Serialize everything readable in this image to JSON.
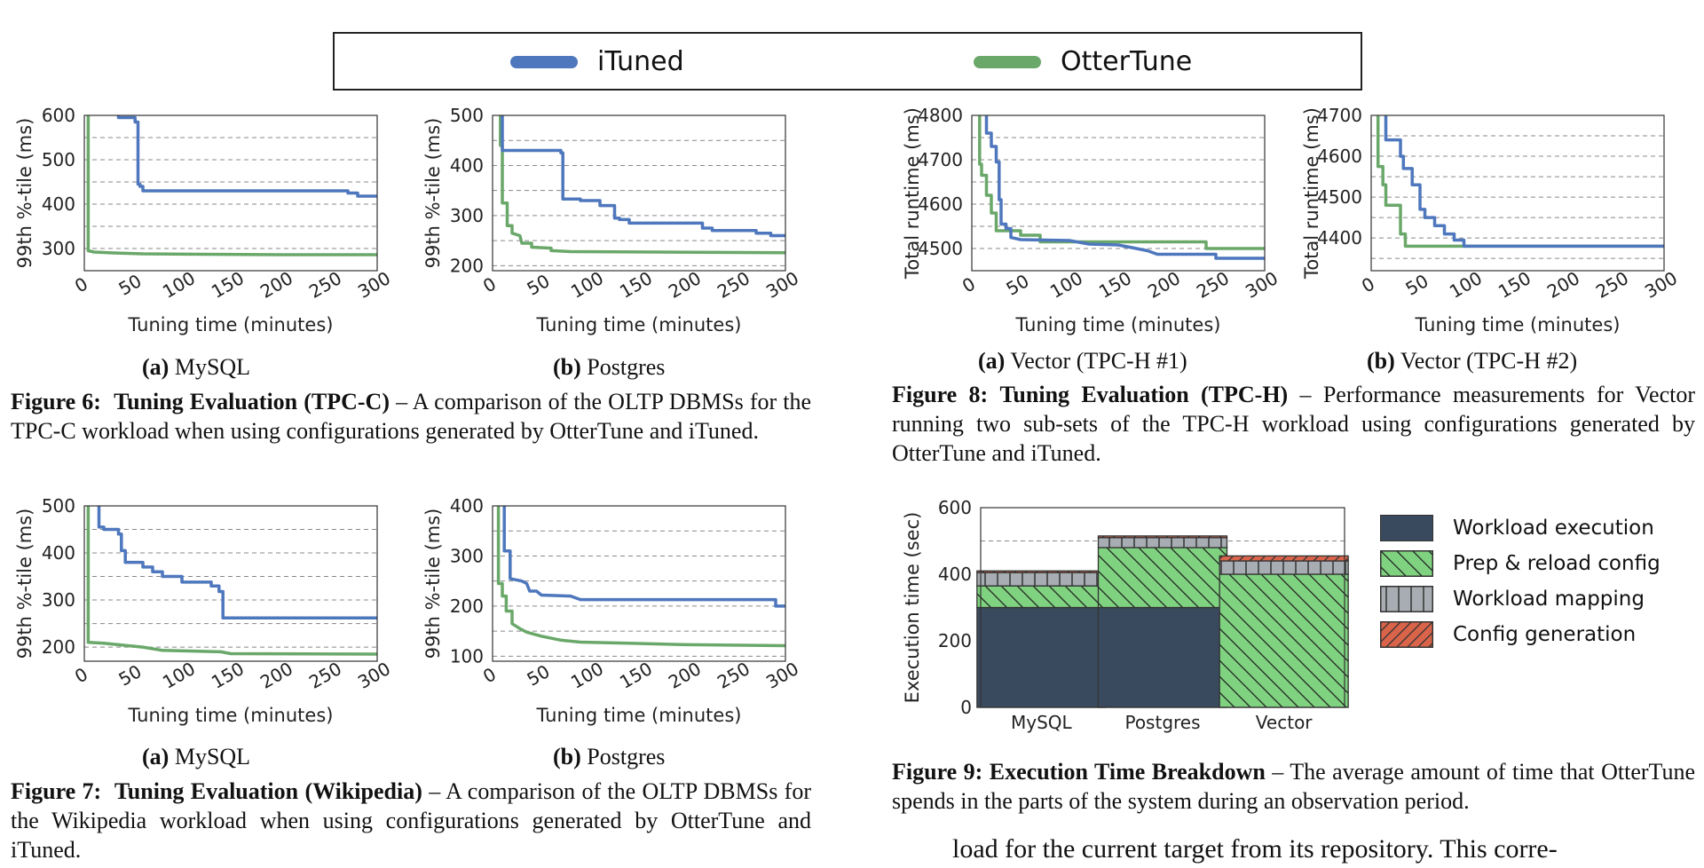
{
  "legend": {
    "itunes_label": "iTuned",
    "ottertune_label": "OtterTune",
    "colors": {
      "ituned": "#4e77bd",
      "ottertune": "#6aa86a"
    }
  },
  "charts": {
    "fig6a": {
      "ylabel": "99th %-tile (ms)",
      "xlabel": "Tuning time (minutes)",
      "xmin": 0,
      "xmax": 300,
      "ymin": 250,
      "ymax": 600,
      "xticks": [
        0,
        50,
        100,
        150,
        200,
        250,
        300
      ],
      "yticks": [
        300,
        400,
        500,
        600
      ],
      "series": {
        "ituned": [
          [
            35,
            600
          ],
          [
            35,
            595
          ],
          [
            52,
            595
          ],
          [
            52,
            585
          ],
          [
            55,
            585
          ],
          [
            55,
            445
          ],
          [
            57,
            445
          ],
          [
            57,
            440
          ],
          [
            60,
            440
          ],
          [
            60,
            430
          ],
          [
            270,
            430
          ],
          [
            270,
            425
          ],
          [
            280,
            425
          ],
          [
            280,
            418
          ],
          [
            300,
            418
          ]
        ],
        "ottertune": [
          [
            4,
            600
          ],
          [
            4,
            295
          ],
          [
            10,
            292
          ],
          [
            30,
            290
          ],
          [
            60,
            288
          ],
          [
            120,
            287
          ],
          [
            200,
            286
          ],
          [
            300,
            286
          ]
        ]
      }
    },
    "fig6b": {
      "ylabel": "99th %-tile (ms)",
      "xlabel": "Tuning time (minutes)",
      "xmin": 0,
      "xmax": 300,
      "ymin": 190,
      "ymax": 500,
      "xticks": [
        0,
        50,
        100,
        150,
        200,
        250,
        300
      ],
      "yticks": [
        200,
        300,
        400,
        500
      ],
      "series": {
        "ituned": [
          [
            10,
            500
          ],
          [
            10,
            430
          ],
          [
            70,
            430
          ],
          [
            70,
            425
          ],
          [
            72,
            425
          ],
          [
            72,
            333
          ],
          [
            90,
            333
          ],
          [
            90,
            330
          ],
          [
            110,
            330
          ],
          [
            110,
            320
          ],
          [
            125,
            320
          ],
          [
            125,
            295
          ],
          [
            130,
            295
          ],
          [
            130,
            292
          ],
          [
            140,
            292
          ],
          [
            140,
            285
          ],
          [
            215,
            285
          ],
          [
            215,
            275
          ],
          [
            225,
            275
          ],
          [
            225,
            270
          ],
          [
            270,
            270
          ],
          [
            270,
            265
          ],
          [
            285,
            265
          ],
          [
            285,
            260
          ],
          [
            300,
            260
          ]
        ],
        "ottertune": [
          [
            8,
            500
          ],
          [
            8,
            440
          ],
          [
            10,
            440
          ],
          [
            10,
            325
          ],
          [
            15,
            325
          ],
          [
            15,
            280
          ],
          [
            20,
            280
          ],
          [
            20,
            265
          ],
          [
            28,
            260
          ],
          [
            30,
            245
          ],
          [
            40,
            245
          ],
          [
            40,
            237
          ],
          [
            60,
            235
          ],
          [
            60,
            230
          ],
          [
            80,
            228
          ],
          [
            300,
            226
          ]
        ]
      }
    },
    "fig7a": {
      "ylabel": "99th %-tile (ms)",
      "xlabel": "Tuning time (minutes)",
      "xmin": 0,
      "xmax": 300,
      "ymin": 170,
      "ymax": 500,
      "xticks": [
        0,
        50,
        100,
        150,
        200,
        250,
        300
      ],
      "yticks": [
        200,
        300,
        400,
        500
      ],
      "series": {
        "ituned": [
          [
            15,
            500
          ],
          [
            15,
            455
          ],
          [
            20,
            455
          ],
          [
            20,
            450
          ],
          [
            35,
            450
          ],
          [
            35,
            440
          ],
          [
            38,
            440
          ],
          [
            38,
            405
          ],
          [
            42,
            405
          ],
          [
            42,
            380
          ],
          [
            60,
            380
          ],
          [
            60,
            370
          ],
          [
            70,
            370
          ],
          [
            70,
            360
          ],
          [
            80,
            360
          ],
          [
            80,
            350
          ],
          [
            100,
            350
          ],
          [
            100,
            338
          ],
          [
            130,
            338
          ],
          [
            130,
            330
          ],
          [
            138,
            330
          ],
          [
            138,
            318
          ],
          [
            142,
            318
          ],
          [
            142,
            262
          ],
          [
            300,
            262
          ]
        ],
        "ottertune": [
          [
            4,
            500
          ],
          [
            4,
            210
          ],
          [
            20,
            208
          ],
          [
            40,
            204
          ],
          [
            60,
            200
          ],
          [
            80,
            193
          ],
          [
            140,
            190
          ],
          [
            150,
            186
          ],
          [
            300,
            185
          ]
        ]
      }
    },
    "fig7b": {
      "ylabel": "99th %-tile (ms)",
      "xlabel": "Tuning time (minutes)",
      "xmin": 0,
      "xmax": 300,
      "ymin": 90,
      "ymax": 400,
      "xticks": [
        0,
        50,
        100,
        150,
        200,
        250,
        300
      ],
      "yticks": [
        100,
        200,
        300,
        400
      ],
      "series": {
        "ituned": [
          [
            12,
            400
          ],
          [
            12,
            310
          ],
          [
            18,
            310
          ],
          [
            18,
            255
          ],
          [
            30,
            250
          ],
          [
            35,
            245
          ],
          [
            38,
            230
          ],
          [
            45,
            230
          ],
          [
            50,
            222
          ],
          [
            80,
            220
          ],
          [
            90,
            213
          ],
          [
            290,
            213
          ],
          [
            290,
            200
          ],
          [
            300,
            200
          ]
        ],
        "ottertune": [
          [
            6,
            400
          ],
          [
            6,
            245
          ],
          [
            10,
            245
          ],
          [
            10,
            220
          ],
          [
            14,
            220
          ],
          [
            14,
            190
          ],
          [
            20,
            190
          ],
          [
            20,
            165
          ],
          [
            28,
            155
          ],
          [
            35,
            148
          ],
          [
            50,
            140
          ],
          [
            70,
            132
          ],
          [
            90,
            128
          ],
          [
            140,
            126
          ],
          [
            200,
            123
          ],
          [
            300,
            121
          ]
        ]
      }
    },
    "fig8a": {
      "ylabel": "Total runtime (ms)",
      "xlabel": "Tuning time (minutes)",
      "xmin": 0,
      "xmax": 300,
      "ymin": 4450,
      "ymax": 4800,
      "xticks": [
        0,
        50,
        100,
        150,
        200,
        250,
        300
      ],
      "yticks": [
        4500,
        4600,
        4700,
        4800
      ],
      "series": {
        "ituned": [
          [
            15,
            4800
          ],
          [
            15,
            4760
          ],
          [
            20,
            4760
          ],
          [
            20,
            4730
          ],
          [
            25,
            4730
          ],
          [
            25,
            4695
          ],
          [
            28,
            4695
          ],
          [
            28,
            4610
          ],
          [
            30,
            4610
          ],
          [
            30,
            4555
          ],
          [
            35,
            4555
          ],
          [
            35,
            4545
          ],
          [
            40,
            4545
          ],
          [
            40,
            4525
          ],
          [
            50,
            4520
          ],
          [
            100,
            4518
          ],
          [
            120,
            4510
          ],
          [
            150,
            4508
          ],
          [
            180,
            4495
          ],
          [
            190,
            4487
          ],
          [
            250,
            4487
          ],
          [
            250,
            4478
          ],
          [
            300,
            4478
          ]
        ],
        "ottertune": [
          [
            8,
            4800
          ],
          [
            8,
            4690
          ],
          [
            10,
            4690
          ],
          [
            10,
            4665
          ],
          [
            15,
            4665
          ],
          [
            15,
            4620
          ],
          [
            20,
            4620
          ],
          [
            20,
            4580
          ],
          [
            25,
            4580
          ],
          [
            25,
            4540
          ],
          [
            50,
            4540
          ],
          [
            50,
            4530
          ],
          [
            70,
            4530
          ],
          [
            70,
            4515
          ],
          [
            240,
            4515
          ],
          [
            240,
            4500
          ],
          [
            300,
            4500
          ]
        ]
      }
    },
    "fig8b": {
      "ylabel": "Total runtime (ms)",
      "xlabel": "Tuning time (minutes)",
      "xmin": 0,
      "xmax": 300,
      "ymin": 4320,
      "ymax": 4700,
      "xticks": [
        0,
        50,
        100,
        150,
        200,
        250,
        300
      ],
      "yticks": [
        4400,
        4500,
        4600,
        4700
      ],
      "series": {
        "ituned": [
          [
            15,
            4700
          ],
          [
            15,
            4640
          ],
          [
            30,
            4640
          ],
          [
            30,
            4600
          ],
          [
            33,
            4600
          ],
          [
            33,
            4570
          ],
          [
            42,
            4570
          ],
          [
            42,
            4530
          ],
          [
            50,
            4530
          ],
          [
            50,
            4470
          ],
          [
            55,
            4470
          ],
          [
            55,
            4450
          ],
          [
            65,
            4450
          ],
          [
            65,
            4430
          ],
          [
            75,
            4430
          ],
          [
            75,
            4410
          ],
          [
            85,
            4410
          ],
          [
            85,
            4395
          ],
          [
            95,
            4395
          ],
          [
            95,
            4380
          ],
          [
            300,
            4380
          ]
        ],
        "ottertune": [
          [
            7,
            4700
          ],
          [
            7,
            4575
          ],
          [
            12,
            4575
          ],
          [
            12,
            4530
          ],
          [
            15,
            4530
          ],
          [
            15,
            4480
          ],
          [
            30,
            4480
          ],
          [
            30,
            4410
          ],
          [
            35,
            4410
          ],
          [
            35,
            4380
          ],
          [
            300,
            4380
          ]
        ]
      }
    }
  },
  "subcaptions": {
    "fig6a": {
      "letter": "(a)",
      "name": "MySQL"
    },
    "fig6b": {
      "letter": "(b)",
      "name": "Postgres"
    },
    "fig7a": {
      "letter": "(a)",
      "name": "MySQL"
    },
    "fig7b": {
      "letter": "(b)",
      "name": "Postgres"
    },
    "fig8a": {
      "letter": "(a)",
      "name": "Vector (TPC-H #1)"
    },
    "fig8b": {
      "letter": "(b)",
      "name": "Vector (TPC-H #2)"
    }
  },
  "captions": {
    "fig6": {
      "label": "Figure 6:",
      "title": "Tuning Evaluation (TPC-C)",
      "text": " – A comparison of the OLTP DBMSs for the TPC-C workload when using configurations generated by OtterTune and iTuned."
    },
    "fig7": {
      "label": "Figure 7:",
      "title": "Tuning Evaluation (Wikipedia)",
      "text": " – A comparison of the OLTP DBMSs for the Wikipedia workload when using configurations generated by OtterTune and iTuned."
    },
    "fig8": {
      "label": "Figure 8:",
      "title": "Tuning Evaluation (TPC-H)",
      "text": " – Performance measurements for Vector running two sub-sets of the TPC-H workload using configurations generated by OtterTune and iTuned."
    },
    "fig9": {
      "label": "Figure 9:",
      "title": "Execution Time Breakdown",
      "text": " – The average amount of time that OtterTune spends in the parts of the system during an observation period."
    }
  },
  "chart_data": {
    "type": "bar",
    "stacked": true,
    "ylabel": "Execution time (sec)",
    "ylim": [
      0,
      600
    ],
    "yticks": [
      0,
      200,
      400,
      600
    ],
    "categories": [
      "MySQL",
      "Postgres",
      "Vector"
    ],
    "series": [
      {
        "name": "Workload execution",
        "values": [
          300,
          300,
          0
        ],
        "color": "#3a4a5e",
        "pattern": "solid"
      },
      {
        "name": "Prep & reload config",
        "values": [
          65,
          180,
          400
        ],
        "color": "#7fd27f",
        "pattern": "hatch"
      },
      {
        "name": "Workload mapping",
        "values": [
          40,
          30,
          40
        ],
        "color": "#a7adb2",
        "pattern": "vertical"
      },
      {
        "name": "Config generation",
        "values": [
          5,
          5,
          15
        ],
        "color": "#d9644a",
        "pattern": "diag"
      }
    ]
  },
  "body_text": "load for the current target from its repository.  This corre-"
}
